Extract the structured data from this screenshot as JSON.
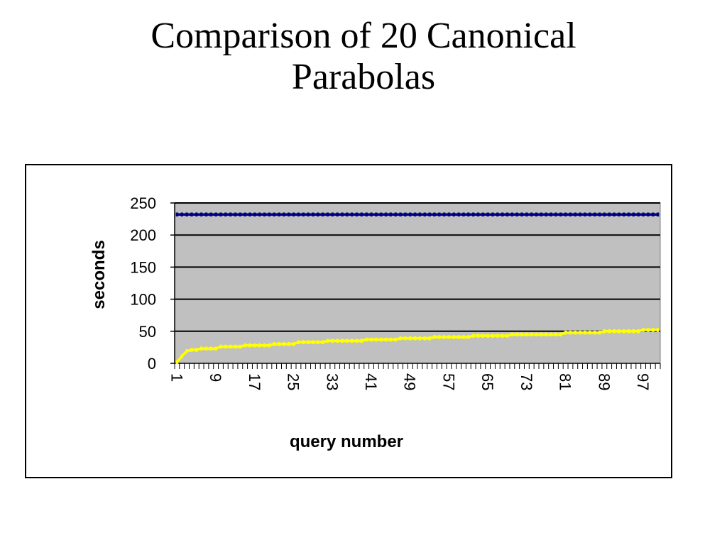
{
  "slide": {
    "title_line1": "Comparison of 20 Canonical",
    "title_line2": "Parabolas"
  },
  "chart_data": {
    "type": "line",
    "title": "",
    "xlabel": "query number",
    "ylabel": "seconds",
    "ylim": [
      0,
      250
    ],
    "yticks": [
      0,
      50,
      100,
      150,
      200,
      250
    ],
    "xticks": [
      "1",
      "9",
      "17",
      "25",
      "33",
      "41",
      "49",
      "57",
      "65",
      "73",
      "81",
      "89",
      "97"
    ],
    "x_count": 100,
    "plot_background": "#c0c0c0",
    "grid": true,
    "series": [
      {
        "color": "#000080",
        "values": [
          232,
          232,
          232,
          232,
          232,
          232,
          232,
          232,
          232,
          232,
          232,
          232,
          232,
          232,
          232,
          232,
          232,
          232,
          232,
          232,
          232,
          232,
          232,
          232,
          232,
          232,
          232,
          232,
          232,
          232,
          232,
          232,
          232,
          232,
          232,
          232,
          232,
          232,
          232,
          232,
          232,
          232,
          232,
          232,
          232,
          232,
          232,
          232,
          232,
          232,
          232,
          232,
          232,
          232,
          232,
          232,
          232,
          232,
          232,
          232,
          232,
          232,
          232,
          232,
          232,
          232,
          232,
          232,
          232,
          232,
          232,
          232,
          232,
          232,
          232,
          232,
          232,
          232,
          232,
          232,
          232,
          232,
          232,
          232,
          232,
          232,
          232,
          232,
          232,
          232,
          232,
          232,
          232,
          232,
          232,
          232,
          232,
          232,
          232,
          232
        ]
      },
      {
        "color": "#ffff00",
        "values": [
          2,
          11,
          19,
          21,
          21,
          23,
          23,
          23,
          23,
          26,
          26,
          26,
          26,
          26,
          28,
          28,
          28,
          28,
          28,
          28,
          30,
          30,
          30,
          30,
          30,
          33,
          33,
          33,
          33,
          33,
          33,
          35,
          35,
          35,
          35,
          35,
          35,
          35,
          35,
          37,
          37,
          37,
          37,
          37,
          37,
          37,
          39,
          39,
          39,
          39,
          39,
          39,
          39,
          41,
          41,
          41,
          41,
          41,
          41,
          41,
          41,
          43,
          43,
          43,
          43,
          43,
          43,
          43,
          43,
          45,
          45,
          45,
          45,
          45,
          45,
          45,
          45,
          45,
          45,
          45,
          48,
          48,
          48,
          48,
          48,
          48,
          48,
          48,
          50,
          50,
          50,
          50,
          50,
          50,
          50,
          50,
          52,
          52,
          52,
          52
        ]
      }
    ]
  }
}
